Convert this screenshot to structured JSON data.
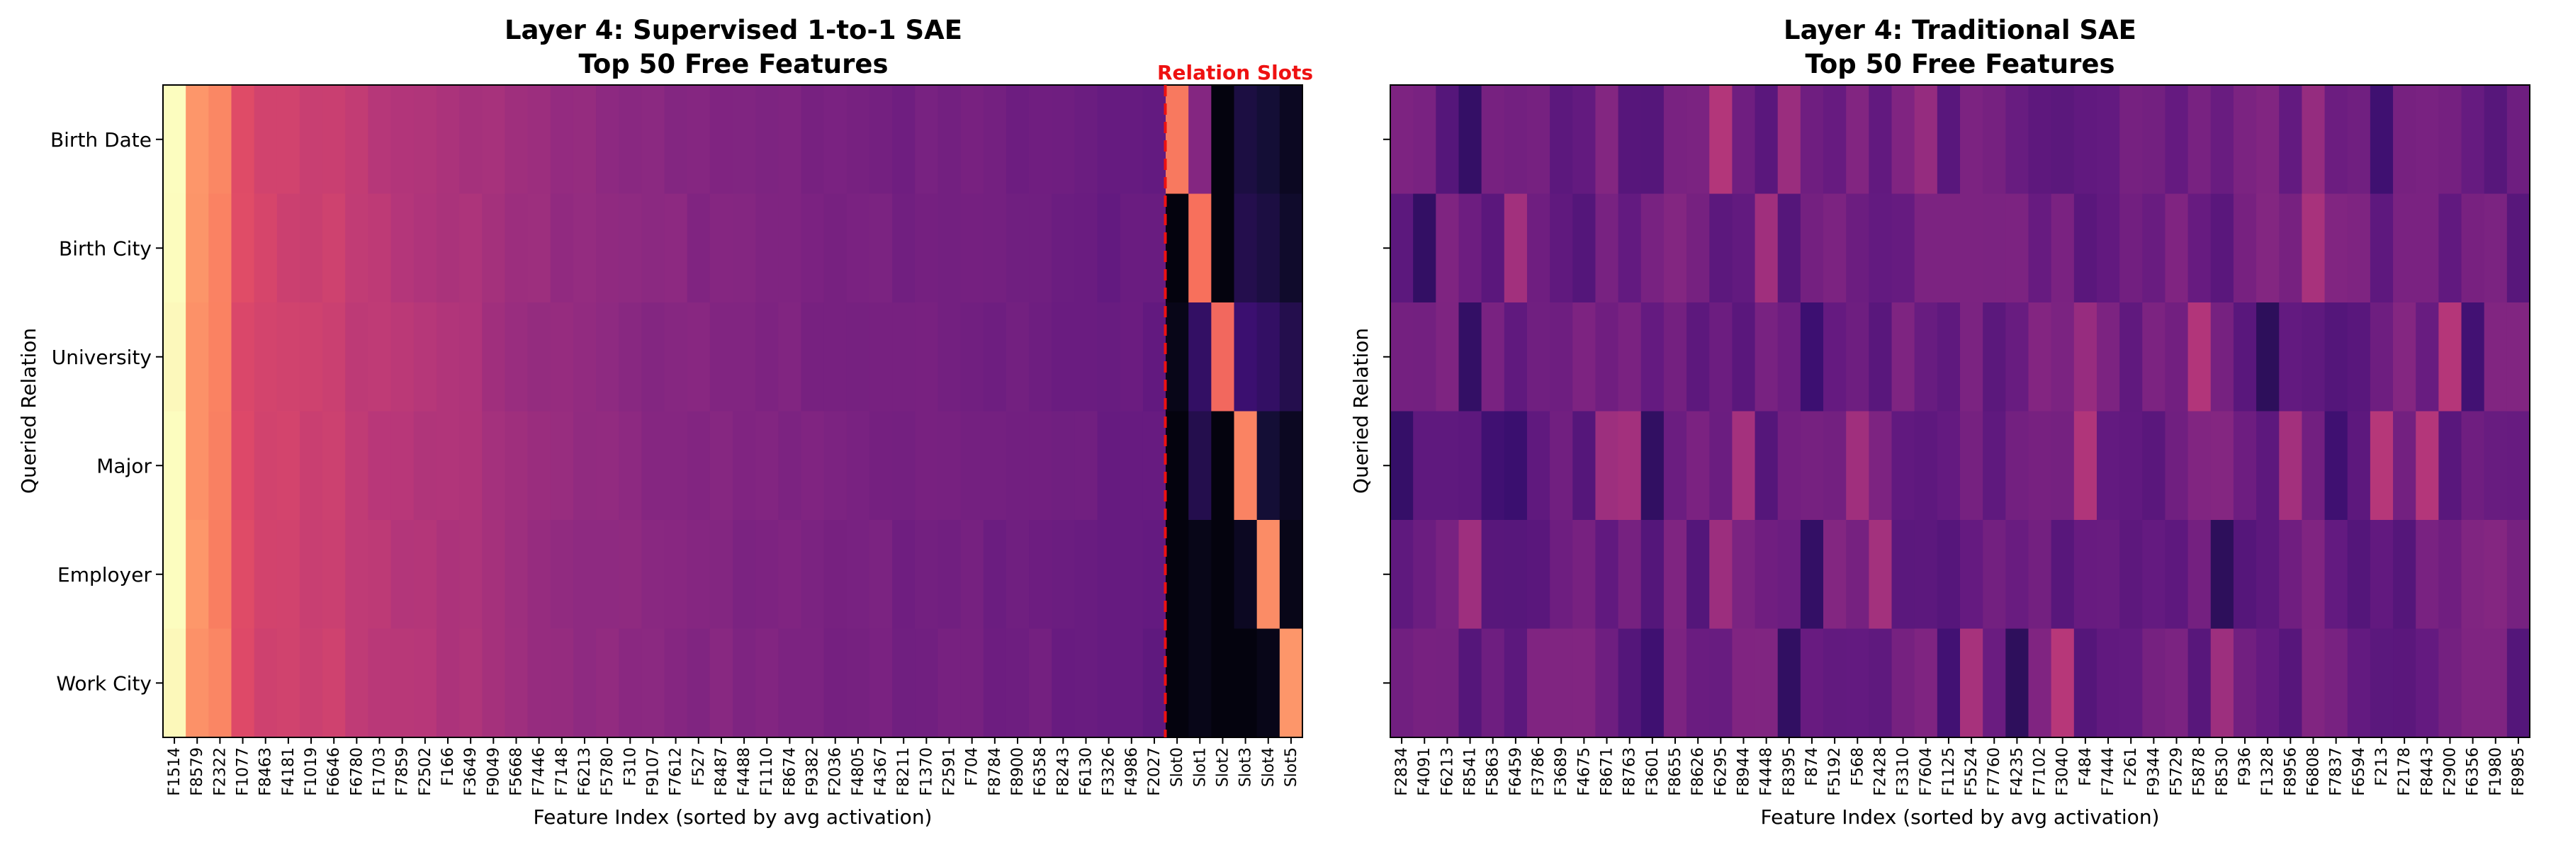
{
  "chart_data": [
    {
      "type": "heatmap",
      "title": "Layer 4: Supervised 1-to-1 SAE",
      "subtitle": "Top 50 Free Features",
      "xlabel": "Feature Index (sorted by avg activation)",
      "ylabel": "Queried Relation",
      "rows": [
        "Birth Date",
        "Birth City",
        "University",
        "Major",
        "Employer",
        "Work City"
      ],
      "columns": [
        "F1514",
        "F8579",
        "F2322",
        "F1077",
        "F8463",
        "F4181",
        "F1019",
        "F6646",
        "F6780",
        "F1703",
        "F7859",
        "F2502",
        "F166",
        "F3649",
        "F9049",
        "F5668",
        "F7446",
        "F7148",
        "F6213",
        "F5780",
        "F310",
        "F9107",
        "F7612",
        "F527",
        "F8487",
        "F4488",
        "F1110",
        "F8674",
        "F9382",
        "F2036",
        "F4805",
        "F4367",
        "F8211",
        "F1370",
        "F2591",
        "F704",
        "F8784",
        "F8900",
        "F6358",
        "F8243",
        "F6130",
        "F3326",
        "F4986",
        "F2027",
        "Slot0",
        "Slot1",
        "Slot2",
        "Slot3",
        "Slot4",
        "Slot5"
      ],
      "colormap": "magma",
      "value_range": [
        0,
        1
      ],
      "free_feature_profile": [
        1.0,
        0.78,
        0.74,
        0.6,
        0.57,
        0.56,
        0.55,
        0.55,
        0.52,
        0.51,
        0.5,
        0.49,
        0.48,
        0.47,
        0.45,
        0.44,
        0.43,
        0.42,
        0.41,
        0.41,
        0.4,
        0.39,
        0.39,
        0.38,
        0.38,
        0.37,
        0.37,
        0.36,
        0.36,
        0.35,
        0.35,
        0.35,
        0.34,
        0.34,
        0.34,
        0.34,
        0.33,
        0.33,
        0.33,
        0.32,
        0.32,
        0.31,
        0.31,
        0.3
      ],
      "slot_values": [
        [
          0.72,
          0.38,
          0.02,
          0.12,
          0.1,
          0.06
        ],
        [
          0.02,
          0.7,
          0.02,
          0.14,
          0.12,
          0.08
        ],
        [
          0.04,
          0.18,
          0.68,
          0.2,
          0.18,
          0.14
        ],
        [
          0.02,
          0.14,
          0.02,
          0.74,
          0.1,
          0.06
        ],
        [
          0.02,
          0.04,
          0.02,
          0.06,
          0.76,
          0.04
        ],
        [
          0.02,
          0.04,
          0.02,
          0.02,
          0.04,
          0.78
        ]
      ],
      "separator_label": "Relation Slots",
      "separator_color": "#ee1111"
    },
    {
      "type": "heatmap",
      "title": "Layer 4: Traditional SAE",
      "subtitle": "Top 50 Free Features",
      "xlabel": "Feature Index (sorted by avg activation)",
      "ylabel": "Queried Relation",
      "rows": [
        "Birth Date",
        "Birth City",
        "University",
        "Major",
        "Employer",
        "Work City"
      ],
      "columns": [
        "F2834",
        "F4091",
        "F6213",
        "F8541",
        "F5863",
        "F6459",
        "F3786",
        "F3689",
        "F4675",
        "F8671",
        "F8763",
        "F3601",
        "F8655",
        "F8626",
        "F6295",
        "F8944",
        "F4448",
        "F8395",
        "F874",
        "F5192",
        "F568",
        "F2428",
        "F3310",
        "F7604",
        "F1125",
        "F5524",
        "F7760",
        "F4235",
        "F7102",
        "F3040",
        "F484",
        "F7444",
        "F261",
        "F9344",
        "F5729",
        "F5878",
        "F8530",
        "F936",
        "F1328",
        "F8956",
        "F6808",
        "F7837",
        "F6594",
        "F213",
        "F2178",
        "F8443",
        "F2900",
        "F6356",
        "F1980",
        "F8985"
      ],
      "colormap": "magma",
      "value_range": [
        0,
        1
      ]
    }
  ]
}
